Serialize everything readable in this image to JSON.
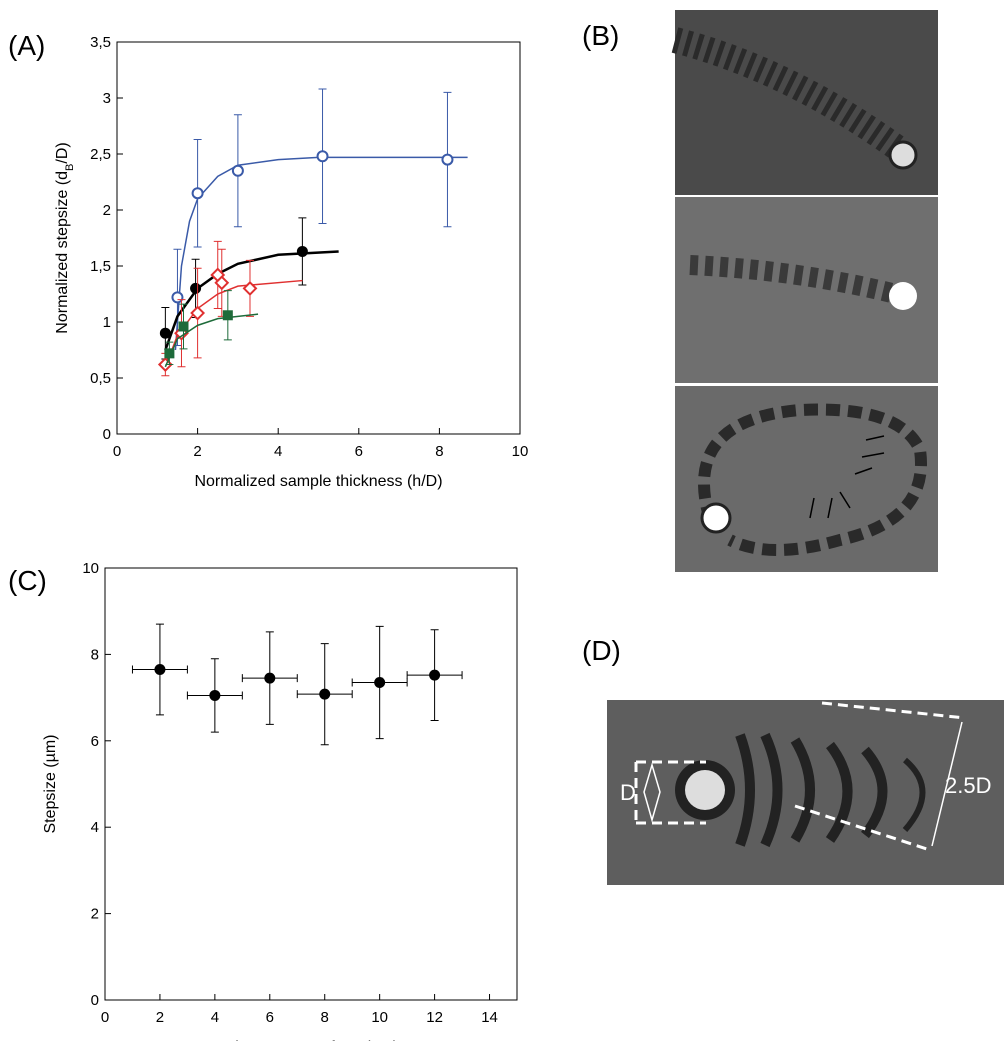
{
  "panel_labels": [
    "(A)",
    "(B)",
    "(C)",
    "(D)"
  ],
  "image_labels": {
    "diameter": "D",
    "stepsize": "2.5D"
  },
  "chart_data": [
    {
      "type": "scatter",
      "xlabel": "Normalized sample thickness (h/D)",
      "ylabel": [
        "Normalized stepsize (d",
        "B",
        "/D)"
      ],
      "xlim": [
        0,
        10
      ],
      "xticks": [
        0,
        2,
        4,
        6,
        8,
        10
      ],
      "ylim": [
        0,
        3.5
      ],
      "yticks": [
        0,
        {
          "value": 0.5,
          "label": "0,5"
        },
        1,
        {
          "value": 1.5,
          "label": "1,5"
        },
        2,
        {
          "value": 2.5,
          "label": "2,5"
        },
        3,
        {
          "value": 3.5,
          "label": "3,5"
        }
      ],
      "series": [
        {
          "color": "#3a5aa8",
          "marker": "open-circle",
          "x": [
            1.5,
            2.0,
            3.0,
            5.1,
            8.2
          ],
          "values": [
            1.22,
            2.15,
            2.35,
            2.48,
            2.45
          ],
          "errors": [
            0.43,
            0.48,
            0.5,
            0.6,
            0.6
          ],
          "fit": {
            "x": [
              1.45,
              1.6,
              1.8,
              2.0,
              2.5,
              3,
              4,
              5,
              6,
              8.7
            ],
            "values": [
              0.75,
              1.5,
              1.9,
              2.1,
              2.3,
              2.4,
              2.45,
              2.47,
              2.47,
              2.47
            ]
          }
        },
        {
          "color": "#000000",
          "marker": "filled-circle",
          "x": [
            1.2,
            1.95,
            4.6
          ],
          "values": [
            0.9,
            1.3,
            1.63
          ],
          "errors": [
            0.23,
            0.26,
            0.3
          ],
          "fit": {
            "x": [
              1.2,
              1.5,
              2,
              2.5,
              3,
              4,
              5.5
            ],
            "values": [
              0.75,
              1.05,
              1.3,
              1.43,
              1.52,
              1.6,
              1.63
            ]
          }
        },
        {
          "color": "#e03030",
          "marker": "open-diamond",
          "x": [
            1.2,
            1.6,
            2.0,
            2.5,
            2.6,
            3.3
          ],
          "values": [
            0.62,
            0.9,
            1.08,
            1.42,
            1.35,
            1.3
          ],
          "errors": [
            0.1,
            0.3,
            0.4,
            0.3,
            0.3,
            0.25
          ],
          "fit": {
            "x": [
              1.2,
              1.5,
              2,
              2.5,
              3,
              4.6
            ],
            "values": [
              0.6,
              0.88,
              1.12,
              1.25,
              1.32,
              1.37
            ]
          }
        },
        {
          "color": "#1e6b3a",
          "marker": "filled-square",
          "x": [
            1.3,
            1.65,
            2.75
          ],
          "values": [
            0.72,
            0.96,
            1.06
          ],
          "errors": [
            0.1,
            0.2,
            0.22
          ],
          "fit": {
            "x": [
              1.2,
              1.5,
              2,
              2.5,
              3.5
            ],
            "values": [
              0.6,
              0.85,
              0.97,
              1.03,
              1.07
            ]
          }
        }
      ]
    },
    {
      "type": "scatter",
      "xlabel": "Distance to surface (µm)",
      "ylabel": [
        "Stepsize (µm)"
      ],
      "xlim": [
        0,
        15
      ],
      "xticks": [
        0,
        2,
        4,
        6,
        8,
        10,
        12,
        14
      ],
      "ylim": [
        0,
        10
      ],
      "yticks": [
        0,
        2,
        4,
        6,
        8,
        10
      ],
      "series": [
        {
          "color": "#000000",
          "marker": "filled-circle",
          "x": [
            2,
            4,
            6,
            8,
            10,
            12
          ],
          "values": [
            7.65,
            7.05,
            7.45,
            7.08,
            7.35,
            7.52
          ],
          "errors": [
            1.05,
            0.85,
            1.07,
            1.17,
            1.3,
            1.05
          ],
          "xerrors": [
            1,
            1,
            1,
            1,
            1,
            1
          ]
        }
      ]
    }
  ]
}
